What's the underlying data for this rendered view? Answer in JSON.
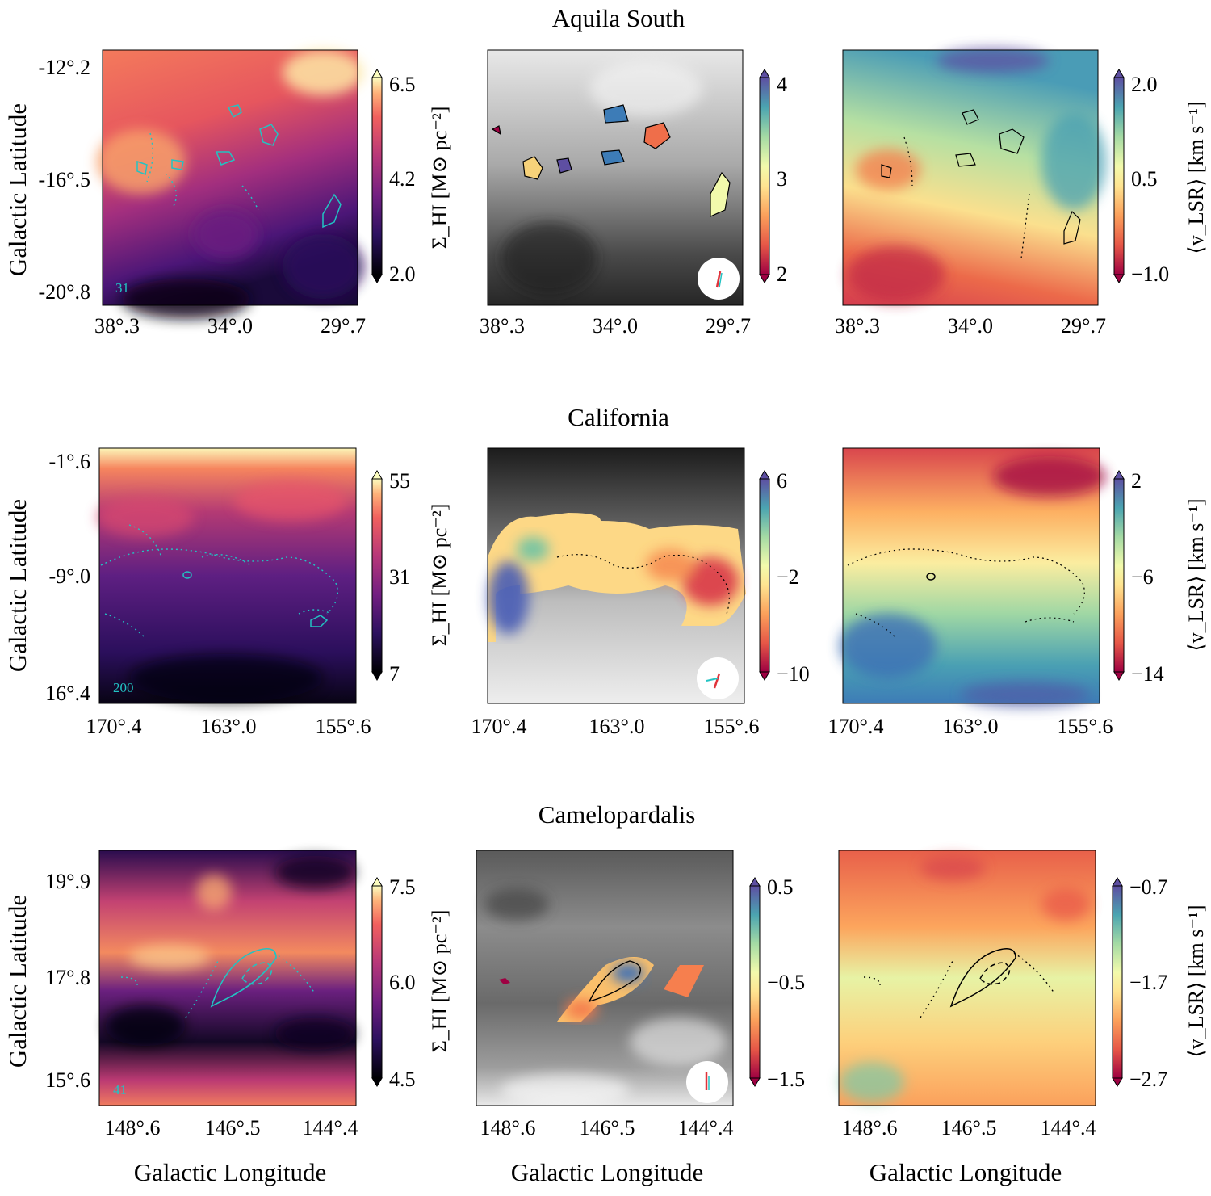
{
  "figure": {
    "xlabel": "Galactic Longitude",
    "ylabel": "Galactic Latitude"
  },
  "colorbar_labels": {
    "surface_density": "Σ_HI [M⊙ pc⁻²]",
    "velocity": "⟨v_LSR⟩ [km s⁻¹]"
  },
  "chart_data": [
    {
      "type": "heatmap",
      "title": "Aquila South",
      "x_ticks": [
        "38°.3",
        "34°.0",
        "29°.7"
      ],
      "y_ticks": [
        "-12°.2",
        "-16°.5",
        "-20°.8"
      ],
      "panel_corner_label": "31",
      "colorbars": {
        "surface_density": {
          "ticks": [
            "6.5",
            "4.2",
            "2.0"
          ],
          "range": [
            2.0,
            6.5
          ],
          "colormap": "magma"
        },
        "velocity_gradient": {
          "ticks": [
            "4",
            "3",
            "2"
          ],
          "range": [
            2,
            4
          ],
          "colormap": "spectral"
        },
        "velocity": {
          "ticks": [
            "2.0",
            "0.5",
            "−1.0"
          ],
          "range": [
            -1.0,
            2.0
          ],
          "colormap": "spectral"
        }
      }
    },
    {
      "type": "heatmap",
      "title": "California",
      "x_ticks": [
        "170°.4",
        "163°.0",
        "155°.6"
      ],
      "y_ticks": [
        "-1°.6",
        "-9°.0",
        "16°.4"
      ],
      "panel_corner_label": "200",
      "colorbars": {
        "surface_density": {
          "ticks": [
            "55",
            "31",
            "7"
          ],
          "range": [
            7,
            55
          ],
          "colormap": "magma"
        },
        "velocity_gradient": {
          "ticks": [
            "6",
            "−2",
            "−10"
          ],
          "range": [
            -10,
            6
          ],
          "colormap": "spectral"
        },
        "velocity": {
          "ticks": [
            "2",
            "−6",
            "−14"
          ],
          "range": [
            -14,
            2
          ],
          "colormap": "spectral"
        }
      }
    },
    {
      "type": "heatmap",
      "title": "Camelopardalis",
      "x_ticks": [
        "148°.6",
        "146°.5",
        "144°.4"
      ],
      "y_ticks": [
        "19°.9",
        "17°.8",
        "15°.6"
      ],
      "panel_corner_label": "41",
      "colorbars": {
        "surface_density": {
          "ticks": [
            "7.5",
            "6.0",
            "4.5"
          ],
          "range": [
            4.5,
            7.5
          ],
          "colormap": "magma"
        },
        "velocity_gradient": {
          "ticks": [
            "0.5",
            "−0.5",
            "−1.5"
          ],
          "range": [
            -1.5,
            0.5
          ],
          "colormap": "spectral"
        },
        "velocity": {
          "ticks": [
            "−0.7",
            "−1.7",
            "−2.7"
          ],
          "range": [
            -2.7,
            -0.7
          ],
          "colormap": "spectral"
        }
      }
    }
  ]
}
